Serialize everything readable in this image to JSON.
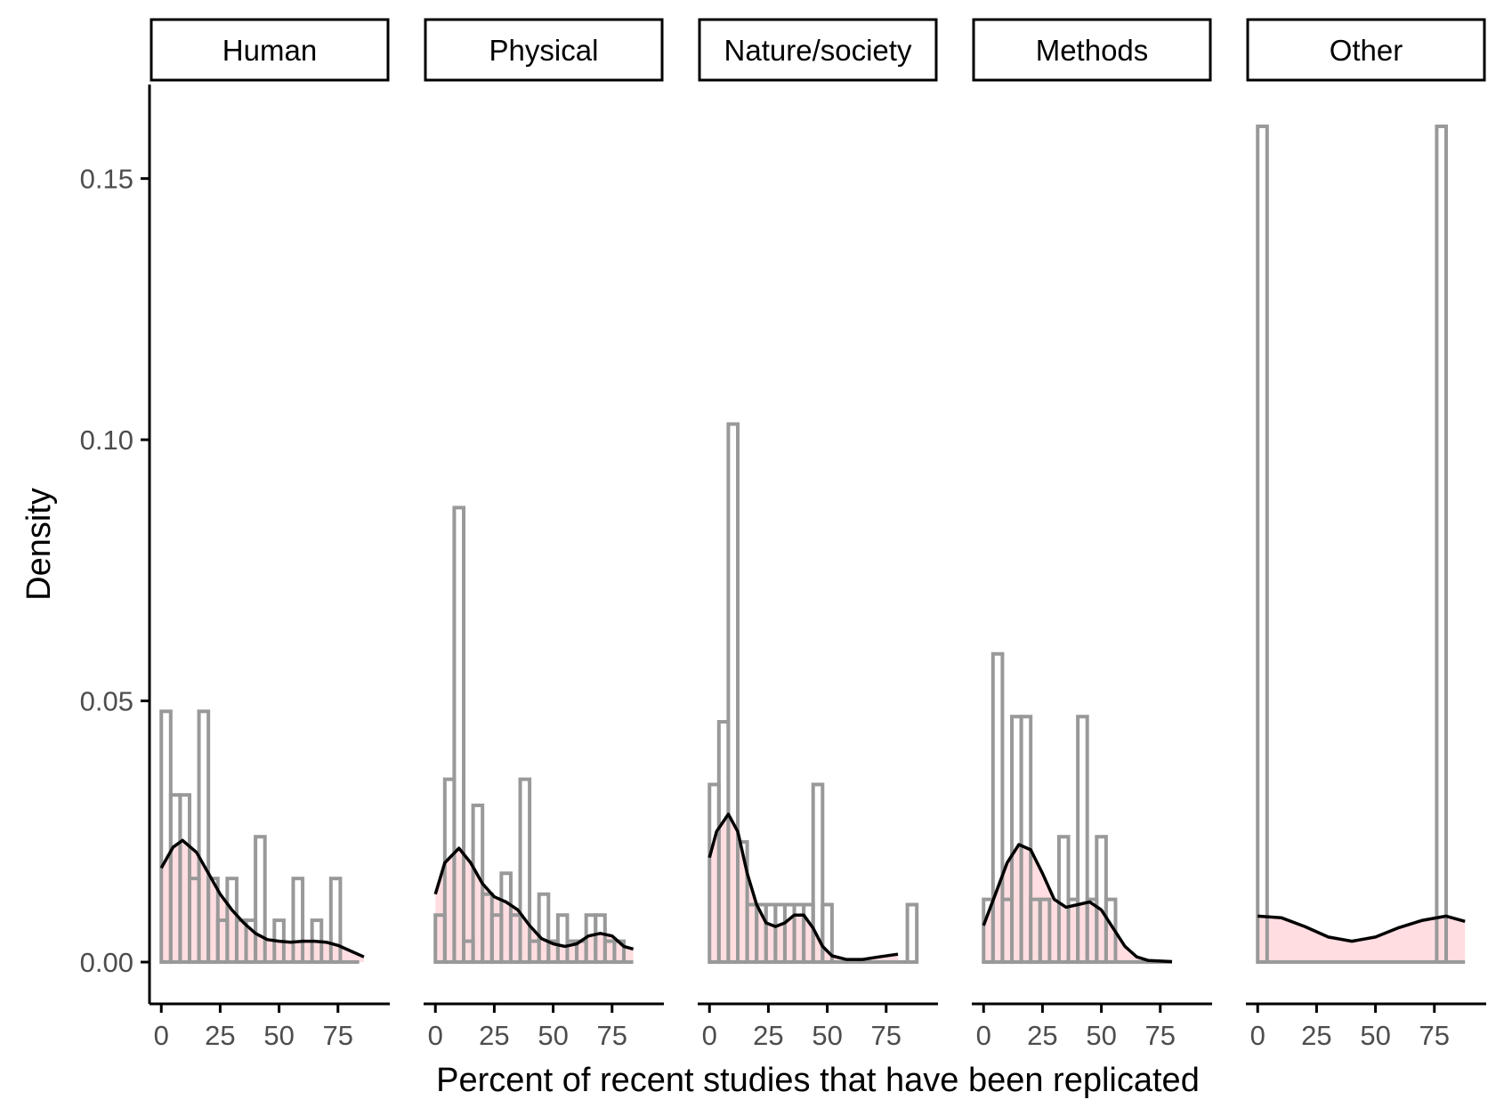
{
  "chart_data": {
    "type": "histogram-density-facets",
    "xlabel": "Percent of recent studies that have been replicated",
    "ylabel": "Density",
    "xlim": [
      -5,
      97
    ],
    "ylim": [
      -0.008,
      0.168
    ],
    "x_ticks": [
      0,
      25,
      50,
      75
    ],
    "y_ticks": [
      0.0,
      0.05,
      0.1,
      0.15
    ],
    "y_tick_labels": [
      "0.00",
      "0.05",
      "0.10",
      "0.15"
    ],
    "bin_width": 4,
    "colors": {
      "hist_outline": "#999999",
      "density_fill": "#ffdde0",
      "density_line": "#000000",
      "axis": "#000000"
    },
    "facets": [
      {
        "label": "Human",
        "bins": [
          {
            "x": 0,
            "y": 0.048
          },
          {
            "x": 4,
            "y": 0.032
          },
          {
            "x": 8,
            "y": 0.032
          },
          {
            "x": 12,
            "y": 0.016
          },
          {
            "x": 16,
            "y": 0.048
          },
          {
            "x": 20,
            "y": 0.016
          },
          {
            "x": 24,
            "y": 0.008
          },
          {
            "x": 28,
            "y": 0.016
          },
          {
            "x": 32,
            "y": 0.008
          },
          {
            "x": 36,
            "y": 0.008
          },
          {
            "x": 40,
            "y": 0.024
          },
          {
            "x": 44,
            "y": 0
          },
          {
            "x": 48,
            "y": 0.008
          },
          {
            "x": 52,
            "y": 0
          },
          {
            "x": 56,
            "y": 0.016
          },
          {
            "x": 60,
            "y": 0
          },
          {
            "x": 64,
            "y": 0.008
          },
          {
            "x": 68,
            "y": 0
          },
          {
            "x": 72,
            "y": 0.016
          },
          {
            "x": 76,
            "y": 0
          },
          {
            "x": 80,
            "y": 0
          }
        ],
        "density": [
          [
            0,
            0.018
          ],
          [
            5,
            0.022
          ],
          [
            9,
            0.0233
          ],
          [
            15,
            0.021
          ],
          [
            20,
            0.017
          ],
          [
            25,
            0.013
          ],
          [
            30,
            0.01
          ],
          [
            35,
            0.0075
          ],
          [
            40,
            0.0055
          ],
          [
            45,
            0.0043
          ],
          [
            50,
            0.004
          ],
          [
            55,
            0.0038
          ],
          [
            60,
            0.004
          ],
          [
            65,
            0.004
          ],
          [
            70,
            0.0038
          ],
          [
            75,
            0.0032
          ],
          [
            80,
            0.0022
          ],
          [
            86,
            0.001
          ]
        ]
      },
      {
        "label": "Physical",
        "bins": [
          {
            "x": 0,
            "y": 0.009
          },
          {
            "x": 4,
            "y": 0.035
          },
          {
            "x": 8,
            "y": 0.087
          },
          {
            "x": 12,
            "y": 0.004
          },
          {
            "x": 16,
            "y": 0.03
          },
          {
            "x": 20,
            "y": 0.013
          },
          {
            "x": 24,
            "y": 0.009
          },
          {
            "x": 28,
            "y": 0.017
          },
          {
            "x": 32,
            "y": 0.009
          },
          {
            "x": 36,
            "y": 0.035
          },
          {
            "x": 40,
            "y": 0.004
          },
          {
            "x": 44,
            "y": 0.013
          },
          {
            "x": 48,
            "y": 0.004
          },
          {
            "x": 52,
            "y": 0.009
          },
          {
            "x": 56,
            "y": 0.004
          },
          {
            "x": 60,
            "y": 0.004
          },
          {
            "x": 64,
            "y": 0.009
          },
          {
            "x": 68,
            "y": 0.009
          },
          {
            "x": 72,
            "y": 0.004
          },
          {
            "x": 76,
            "y": 0.004
          },
          {
            "x": 80,
            "y": 0
          }
        ],
        "density": [
          [
            0,
            0.013
          ],
          [
            4,
            0.019
          ],
          [
            10,
            0.0218
          ],
          [
            15,
            0.019
          ],
          [
            20,
            0.015
          ],
          [
            25,
            0.0125
          ],
          [
            30,
            0.0115
          ],
          [
            35,
            0.01
          ],
          [
            40,
            0.007
          ],
          [
            45,
            0.0045
          ],
          [
            50,
            0.0035
          ],
          [
            55,
            0.003
          ],
          [
            60,
            0.0035
          ],
          [
            65,
            0.005
          ],
          [
            70,
            0.0055
          ],
          [
            75,
            0.005
          ],
          [
            80,
            0.003
          ],
          [
            84,
            0.0025
          ]
        ]
      },
      {
        "label": "Nature/society",
        "bins": [
          {
            "x": 0,
            "y": 0.034
          },
          {
            "x": 4,
            "y": 0.046
          },
          {
            "x": 8,
            "y": 0.103
          },
          {
            "x": 12,
            "y": 0.023
          },
          {
            "x": 16,
            "y": 0.011
          },
          {
            "x": 20,
            "y": 0.011
          },
          {
            "x": 24,
            "y": 0.011
          },
          {
            "x": 28,
            "y": 0.011
          },
          {
            "x": 32,
            "y": 0.011
          },
          {
            "x": 36,
            "y": 0.011
          },
          {
            "x": 40,
            "y": 0.011
          },
          {
            "x": 44,
            "y": 0.034
          },
          {
            "x": 48,
            "y": 0.011
          },
          {
            "x": 52,
            "y": 0
          },
          {
            "x": 56,
            "y": 0
          },
          {
            "x": 60,
            "y": 0
          },
          {
            "x": 64,
            "y": 0
          },
          {
            "x": 68,
            "y": 0
          },
          {
            "x": 72,
            "y": 0
          },
          {
            "x": 76,
            "y": 0
          },
          {
            "x": 80,
            "y": 0
          },
          {
            "x": 84,
            "y": 0.011
          }
        ],
        "density": [
          [
            0,
            0.02
          ],
          [
            3,
            0.025
          ],
          [
            8,
            0.0283
          ],
          [
            12,
            0.025
          ],
          [
            16,
            0.017
          ],
          [
            20,
            0.011
          ],
          [
            24,
            0.0075
          ],
          [
            28,
            0.0068
          ],
          [
            32,
            0.0075
          ],
          [
            36,
            0.009
          ],
          [
            40,
            0.009
          ],
          [
            44,
            0.0065
          ],
          [
            48,
            0.003
          ],
          [
            52,
            0.0012
          ],
          [
            58,
            0.0005
          ],
          [
            65,
            0.0005
          ],
          [
            72,
            0.001
          ],
          [
            80,
            0.0015
          ]
        ]
      },
      {
        "label": "Methods",
        "bins": [
          {
            "x": 0,
            "y": 0.012
          },
          {
            "x": 4,
            "y": 0.059
          },
          {
            "x": 8,
            "y": 0.012
          },
          {
            "x": 12,
            "y": 0.047
          },
          {
            "x": 16,
            "y": 0.047
          },
          {
            "x": 20,
            "y": 0.012
          },
          {
            "x": 24,
            "y": 0.012
          },
          {
            "x": 28,
            "y": 0
          },
          {
            "x": 32,
            "y": 0.024
          },
          {
            "x": 36,
            "y": 0.012
          },
          {
            "x": 40,
            "y": 0.047
          },
          {
            "x": 44,
            "y": 0.012
          },
          {
            "x": 48,
            "y": 0.024
          },
          {
            "x": 52,
            "y": 0.012
          },
          {
            "x": 56,
            "y": 0
          },
          {
            "x": 60,
            "y": 0
          },
          {
            "x": 64,
            "y": 0
          },
          {
            "x": 68,
            "y": 0
          },
          {
            "x": 72,
            "y": 0
          },
          {
            "x": 76,
            "y": 0
          }
        ],
        "density": [
          [
            0,
            0.007
          ],
          [
            5,
            0.013
          ],
          [
            10,
            0.019
          ],
          [
            15,
            0.0225
          ],
          [
            20,
            0.0215
          ],
          [
            25,
            0.017
          ],
          [
            30,
            0.012
          ],
          [
            35,
            0.0105
          ],
          [
            40,
            0.011
          ],
          [
            45,
            0.0115
          ],
          [
            50,
            0.01
          ],
          [
            55,
            0.0065
          ],
          [
            60,
            0.003
          ],
          [
            65,
            0.001
          ],
          [
            70,
            0.0003
          ],
          [
            75,
            0.0002
          ],
          [
            80,
            0.0001
          ]
        ]
      },
      {
        "label": "Other",
        "bins": [
          {
            "x": 0,
            "y": 0.16
          },
          {
            "x": 4,
            "y": 0
          },
          {
            "x": 8,
            "y": 0
          },
          {
            "x": 12,
            "y": 0
          },
          {
            "x": 16,
            "y": 0
          },
          {
            "x": 20,
            "y": 0
          },
          {
            "x": 24,
            "y": 0
          },
          {
            "x": 28,
            "y": 0
          },
          {
            "x": 32,
            "y": 0
          },
          {
            "x": 36,
            "y": 0
          },
          {
            "x": 40,
            "y": 0
          },
          {
            "x": 44,
            "y": 0
          },
          {
            "x": 48,
            "y": 0
          },
          {
            "x": 52,
            "y": 0
          },
          {
            "x": 56,
            "y": 0
          },
          {
            "x": 60,
            "y": 0
          },
          {
            "x": 64,
            "y": 0
          },
          {
            "x": 68,
            "y": 0
          },
          {
            "x": 72,
            "y": 0
          },
          {
            "x": 76,
            "y": 0.16
          },
          {
            "x": 80,
            "y": 0
          },
          {
            "x": 84,
            "y": 0
          }
        ],
        "density": [
          [
            0,
            0.0088
          ],
          [
            10,
            0.0085
          ],
          [
            20,
            0.0068
          ],
          [
            30,
            0.0048
          ],
          [
            40,
            0.004
          ],
          [
            50,
            0.0048
          ],
          [
            60,
            0.0066
          ],
          [
            70,
            0.008
          ],
          [
            80,
            0.0088
          ],
          [
            88,
            0.0078
          ]
        ]
      }
    ]
  }
}
